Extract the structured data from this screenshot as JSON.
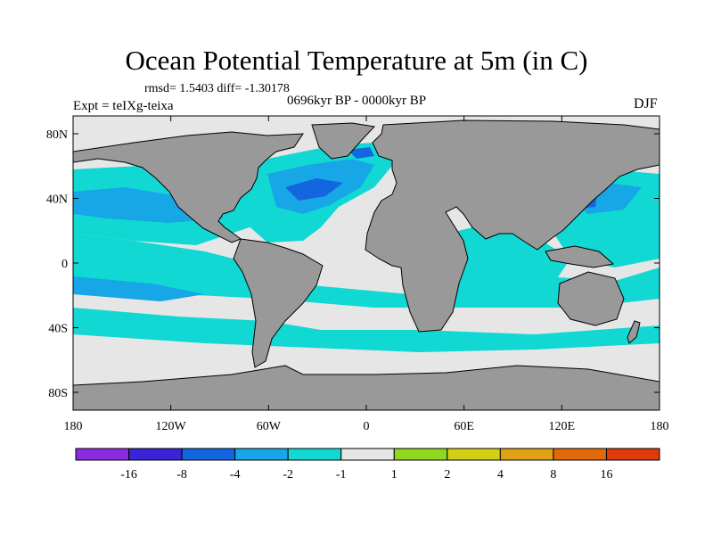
{
  "title": "Ocean Potential Temperature at 5m (in C)",
  "stats": "rmsd= 1.5403  diff= -1.30178",
  "experiment": "Expt = teIXg-teixa",
  "period": "0696kyr BP - 0000kyr BP",
  "season": "DJF",
  "axes": {
    "x_ticks": [
      "180",
      "120W",
      "60W",
      "0",
      "60E",
      "120E",
      "180"
    ],
    "y_ticks": [
      "80N",
      "40N",
      "0",
      "40S",
      "80S"
    ]
  },
  "colorbar": {
    "colors": [
      "#8a2be2",
      "#3b24d8",
      "#1466e0",
      "#17a6e6",
      "#12d8d3",
      "#e6e6e6",
      "#8fd81e",
      "#d4cf14",
      "#e0a214",
      "#e06a0a",
      "#de3a0a"
    ],
    "labels": [
      "-16",
      "-8",
      "-4",
      "-2",
      "-1",
      "1",
      "2",
      "4",
      "8",
      "16"
    ]
  },
  "map_colors": {
    "land": "#999999",
    "neutral": "#e6e6e6",
    "cool": "#12d8d3",
    "cooler": "#17a6e6",
    "cold": "#1466e0",
    "warm": "#8fd81e"
  }
}
